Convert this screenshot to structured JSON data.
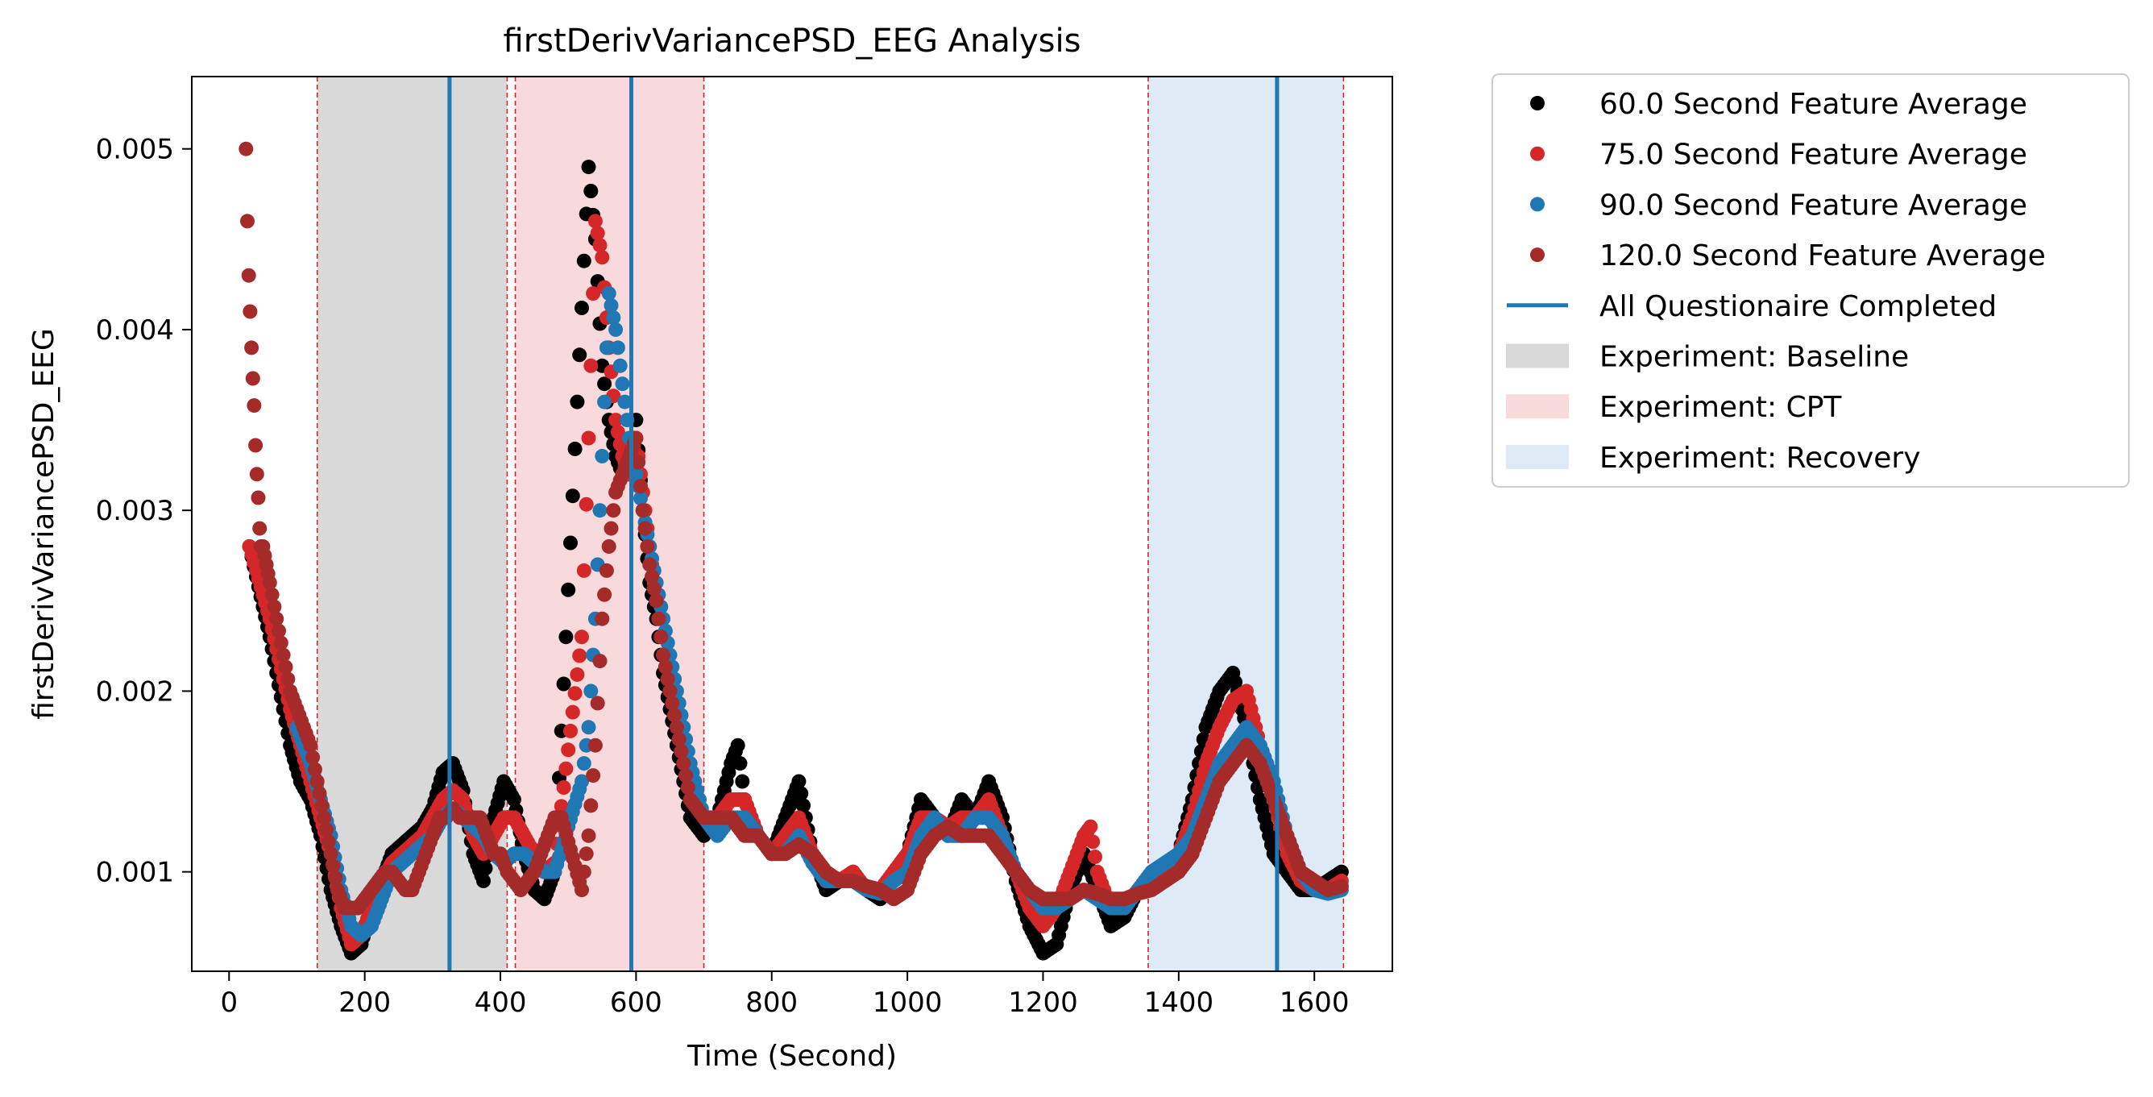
{
  "chart_data": {
    "type": "scatter",
    "title": "firstDerivVariancePSD_EEG Analysis",
    "xlabel": "Time (Second)",
    "ylabel": "firstDerivVariancePSD_EEG",
    "xlim": [
      -55,
      1715
    ],
    "ylim": [
      0.00045,
      0.0054
    ],
    "x_ticks": [
      0,
      200,
      400,
      600,
      800,
      1000,
      1200,
      1400,
      1600
    ],
    "x_tick_labels": [
      "0",
      "200",
      "400",
      "600",
      "800",
      "1000",
      "1200",
      "1400",
      "1600"
    ],
    "y_ticks": [
      0.001,
      0.002,
      0.003,
      0.004,
      0.005
    ],
    "y_tick_labels": [
      "0.001",
      "0.002",
      "0.003",
      "0.004",
      "0.005"
    ],
    "grid": false,
    "legend_position": "outside-right",
    "series": [
      {
        "name": "60.0 Second Feature Average",
        "color": "#000000",
        "x": [
          30,
          60,
          90,
          105,
          120,
          135,
          150,
          165,
          180,
          195,
          210,
          225,
          240,
          255,
          270,
          285,
          300,
          315,
          330,
          345,
          360,
          375,
          390,
          405,
          420,
          435,
          450,
          465,
          480,
          530,
          540,
          550,
          560,
          570,
          580,
          590,
          600,
          610,
          620,
          630,
          640,
          660,
          680,
          700,
          720,
          740,
          750,
          760,
          780,
          800,
          820,
          840,
          860,
          880,
          900,
          920,
          940,
          960,
          980,
          1000,
          1020,
          1040,
          1060,
          1080,
          1100,
          1120,
          1140,
          1160,
          1180,
          1200,
          1220,
          1240,
          1260,
          1280,
          1300,
          1320,
          1340,
          1360,
          1380,
          1400,
          1420,
          1440,
          1460,
          1480,
          1500,
          1520,
          1540,
          1560,
          1580,
          1600,
          1620,
          1640
        ],
        "y": [
          0.0028,
          0.0023,
          0.0017,
          0.0015,
          0.0014,
          0.0012,
          0.0009,
          0.0007,
          0.00055,
          0.0006,
          0.0008,
          0.00095,
          0.0011,
          0.00115,
          0.0012,
          0.00125,
          0.00135,
          0.00155,
          0.0016,
          0.00145,
          0.0011,
          0.00095,
          0.0013,
          0.0015,
          0.0014,
          0.0011,
          0.0009,
          0.00085,
          0.001,
          0.0049,
          0.0045,
          0.0038,
          0.0035,
          0.0033,
          0.0032,
          0.0032,
          0.0035,
          0.003,
          0.0026,
          0.0024,
          0.0021,
          0.0017,
          0.0013,
          0.0012,
          0.0013,
          0.0016,
          0.0017,
          0.0014,
          0.0012,
          0.0011,
          0.0013,
          0.0015,
          0.0011,
          0.0009,
          0.00095,
          0.001,
          0.0009,
          0.00085,
          0.001,
          0.0011,
          0.0014,
          0.0013,
          0.0012,
          0.0014,
          0.0013,
          0.0015,
          0.0013,
          0.00095,
          0.0007,
          0.00055,
          0.0006,
          0.0009,
          0.0011,
          0.0009,
          0.0007,
          0.00075,
          0.0009,
          0.00095,
          0.001,
          0.0011,
          0.0014,
          0.0018,
          0.002,
          0.0021,
          0.0018,
          0.0014,
          0.0011,
          0.001,
          0.0009,
          0.0009,
          0.00095,
          0.001
        ]
      },
      {
        "name": "75.0 Second Feature Average",
        "color": "#d62728",
        "x": [
          30,
          60,
          90,
          105,
          120,
          135,
          150,
          165,
          180,
          195,
          210,
          225,
          240,
          255,
          270,
          285,
          300,
          315,
          330,
          345,
          360,
          375,
          390,
          405,
          420,
          435,
          450,
          465,
          480,
          520,
          530,
          540,
          550,
          560,
          570,
          580,
          590,
          600,
          610,
          620,
          630,
          640,
          660,
          680,
          700,
          720,
          740,
          760,
          780,
          800,
          820,
          840,
          860,
          880,
          900,
          920,
          940,
          960,
          980,
          1000,
          1020,
          1040,
          1060,
          1080,
          1100,
          1120,
          1140,
          1160,
          1180,
          1200,
          1220,
          1240,
          1260,
          1270,
          1280,
          1300,
          1320,
          1340,
          1360,
          1380,
          1400,
          1420,
          1440,
          1460,
          1480,
          1500,
          1520,
          1540,
          1560,
          1580,
          1600,
          1620,
          1640
        ],
        "y": [
          0.0028,
          0.0024,
          0.0019,
          0.0017,
          0.0015,
          0.0013,
          0.0011,
          0.0008,
          0.0006,
          0.00065,
          0.0008,
          0.00095,
          0.00105,
          0.0011,
          0.00115,
          0.0012,
          0.0013,
          0.0014,
          0.00145,
          0.0014,
          0.0012,
          0.0011,
          0.0012,
          0.0013,
          0.0013,
          0.0012,
          0.0011,
          0.001,
          0.00105,
          0.0023,
          0.0034,
          0.0046,
          0.0044,
          0.0039,
          0.0035,
          0.0033,
          0.0032,
          0.0034,
          0.0031,
          0.0028,
          0.0025,
          0.0022,
          0.0018,
          0.0014,
          0.0013,
          0.0013,
          0.0014,
          0.0014,
          0.0012,
          0.0011,
          0.0012,
          0.0013,
          0.0011,
          0.00095,
          0.00095,
          0.001,
          0.0009,
          0.0009,
          0.001,
          0.0011,
          0.0013,
          0.0013,
          0.00125,
          0.0013,
          0.0013,
          0.0014,
          0.0012,
          0.001,
          0.0008,
          0.0007,
          0.0008,
          0.001,
          0.0012,
          0.00125,
          0.001,
          0.0008,
          0.0008,
          0.0009,
          0.00095,
          0.001,
          0.0011,
          0.0013,
          0.0016,
          0.0018,
          0.00195,
          0.002,
          0.0017,
          0.0014,
          0.0011,
          0.00095,
          0.0009,
          0.0009,
          0.00095
        ]
      },
      {
        "name": "90.0 Second Feature Average",
        "color": "#1f77b4",
        "x": [
          100,
          120,
          135,
          150,
          165,
          180,
          195,
          210,
          225,
          240,
          255,
          270,
          285,
          300,
          315,
          330,
          345,
          360,
          375,
          390,
          405,
          420,
          435,
          450,
          465,
          480,
          520,
          530,
          540,
          550,
          560,
          570,
          580,
          590,
          600,
          610,
          620,
          630,
          640,
          660,
          680,
          700,
          720,
          740,
          760,
          780,
          800,
          820,
          840,
          860,
          880,
          900,
          920,
          940,
          960,
          980,
          1000,
          1020,
          1040,
          1060,
          1080,
          1100,
          1120,
          1140,
          1160,
          1180,
          1200,
          1220,
          1240,
          1260,
          1280,
          1300,
          1320,
          1340,
          1360,
          1380,
          1400,
          1420,
          1440,
          1460,
          1480,
          1500,
          1520,
          1540,
          1560,
          1580,
          1600,
          1620,
          1640
        ],
        "y": [
          0.0018,
          0.0016,
          0.0014,
          0.0012,
          0.0009,
          0.0007,
          0.00065,
          0.0007,
          0.00085,
          0.001,
          0.00105,
          0.0011,
          0.00115,
          0.0012,
          0.0013,
          0.00135,
          0.0013,
          0.00125,
          0.0012,
          0.0011,
          0.00105,
          0.0011,
          0.0011,
          0.00105,
          0.001,
          0.001,
          0.0015,
          0.0018,
          0.0024,
          0.0033,
          0.0042,
          0.004,
          0.0037,
          0.0034,
          0.0032,
          0.003,
          0.0028,
          0.0026,
          0.0024,
          0.002,
          0.0016,
          0.0013,
          0.0012,
          0.0013,
          0.0013,
          0.0012,
          0.0011,
          0.0011,
          0.0012,
          0.00105,
          0.00095,
          0.00095,
          0.00095,
          0.0009,
          0.00088,
          0.00095,
          0.001,
          0.0012,
          0.0013,
          0.0012,
          0.0012,
          0.0013,
          0.0013,
          0.0012,
          0.001,
          0.0009,
          0.0008,
          0.0008,
          0.00085,
          0.0009,
          0.00085,
          0.0008,
          0.0008,
          0.0009,
          0.001,
          0.00105,
          0.0011,
          0.0012,
          0.0014,
          0.0016,
          0.0017,
          0.0018,
          0.0017,
          0.0015,
          0.0012,
          0.001,
          0.0009,
          0.00088,
          0.0009
        ]
      },
      {
        "name": "120.0 Second Feature Average",
        "color": "#a52a2a",
        "x": [
          25,
          27,
          29,
          31,
          33,
          35,
          37,
          39,
          41,
          43,
          45,
          47,
          50,
          55,
          60,
          70,
          80,
          90,
          100,
          110,
          120,
          130,
          140,
          150,
          160,
          170,
          180,
          190,
          200,
          210,
          220,
          230,
          240,
          250,
          260,
          270,
          280,
          290,
          300,
          310,
          320,
          330,
          340,
          350,
          360,
          370,
          380,
          390,
          400,
          410,
          420,
          430,
          440,
          450,
          460,
          470,
          480,
          490,
          520,
          530,
          540,
          550,
          560,
          570,
          580,
          590,
          600,
          610,
          620,
          630,
          640,
          660,
          680,
          700,
          720,
          740,
          760,
          780,
          800,
          820,
          840,
          860,
          880,
          900,
          920,
          940,
          960,
          980,
          1000,
          1020,
          1040,
          1060,
          1080,
          1100,
          1120,
          1140,
          1160,
          1180,
          1200,
          1220,
          1240,
          1260,
          1280,
          1300,
          1320,
          1340,
          1360,
          1380,
          1400,
          1420,
          1440,
          1460,
          1480,
          1500,
          1520,
          1540,
          1560,
          1580,
          1600,
          1620,
          1640
        ],
        "y": [
          0.005,
          0.0046,
          0.0043,
          0.0041,
          0.0039,
          0.00373,
          0.00358,
          0.00336,
          0.0032,
          0.00307,
          0.0029,
          0.0028,
          0.0028,
          0.0027,
          0.0026,
          0.0024,
          0.0022,
          0.002,
          0.0019,
          0.0018,
          0.0017,
          0.0015,
          0.0013,
          0.0011,
          0.0009,
          0.0008,
          0.0008,
          0.0008,
          0.00085,
          0.0009,
          0.00095,
          0.001,
          0.001,
          0.00095,
          0.0009,
          0.0009,
          0.001,
          0.0011,
          0.0012,
          0.0013,
          0.0013,
          0.00135,
          0.0013,
          0.0013,
          0.0013,
          0.0013,
          0.0012,
          0.0011,
          0.0011,
          0.001,
          0.00095,
          0.0009,
          0.00095,
          0.001,
          0.0011,
          0.0012,
          0.0013,
          0.0013,
          0.0009,
          0.0012,
          0.0017,
          0.0024,
          0.0028,
          0.0031,
          0.0032,
          0.0033,
          0.0034,
          0.003,
          0.0027,
          0.0025,
          0.0022,
          0.0018,
          0.0014,
          0.0013,
          0.0013,
          0.0013,
          0.0012,
          0.0012,
          0.0011,
          0.0011,
          0.00115,
          0.0011,
          0.001,
          0.00095,
          0.00095,
          0.00092,
          0.0009,
          0.00085,
          0.0009,
          0.0011,
          0.0012,
          0.00125,
          0.0012,
          0.0012,
          0.0012,
          0.0011,
          0.001,
          0.0009,
          0.00085,
          0.00085,
          0.00085,
          0.0009,
          0.00088,
          0.00085,
          0.00085,
          0.00088,
          0.0009,
          0.00095,
          0.001,
          0.0011,
          0.0013,
          0.0015,
          0.0016,
          0.0017,
          0.0016,
          0.0014,
          0.0012,
          0.001,
          0.00095,
          0.0009,
          0.00092
        ]
      }
    ],
    "vlines": {
      "name": "All Questionaire Completed",
      "color": "#1f77b4",
      "x": [
        325,
        593,
        1545
      ]
    },
    "regions": [
      {
        "name": "Experiment: Baseline",
        "start": 130,
        "end": 410,
        "color": "#bfbfbf"
      },
      {
        "name": "Experiment: CPT",
        "start": 422,
        "end": 700,
        "color": "#f4c2c4"
      },
      {
        "name": "Experiment: Recovery",
        "start": 1355,
        "end": 1643,
        "color": "#c8dcee"
      }
    ],
    "legend": [
      {
        "label": "60.0 Second Feature Average",
        "kind": "marker",
        "color": "#000000"
      },
      {
        "label": "75.0 Second Feature Average",
        "kind": "marker",
        "color": "#d62728"
      },
      {
        "label": "90.0 Second Feature Average",
        "kind": "marker",
        "color": "#1f77b4"
      },
      {
        "label": "120.0 Second Feature Average",
        "kind": "marker",
        "color": "#a52a2a"
      },
      {
        "label": "All Questionaire Completed",
        "kind": "line",
        "color": "#1f77b4"
      },
      {
        "label": "Experiment: Baseline",
        "kind": "patch",
        "color": "#bfbfbf"
      },
      {
        "label": "Experiment: CPT",
        "kind": "patch",
        "color": "#f4c2c4"
      },
      {
        "label": "Experiment: Recovery",
        "kind": "patch",
        "color": "#c8dcee"
      }
    ]
  }
}
